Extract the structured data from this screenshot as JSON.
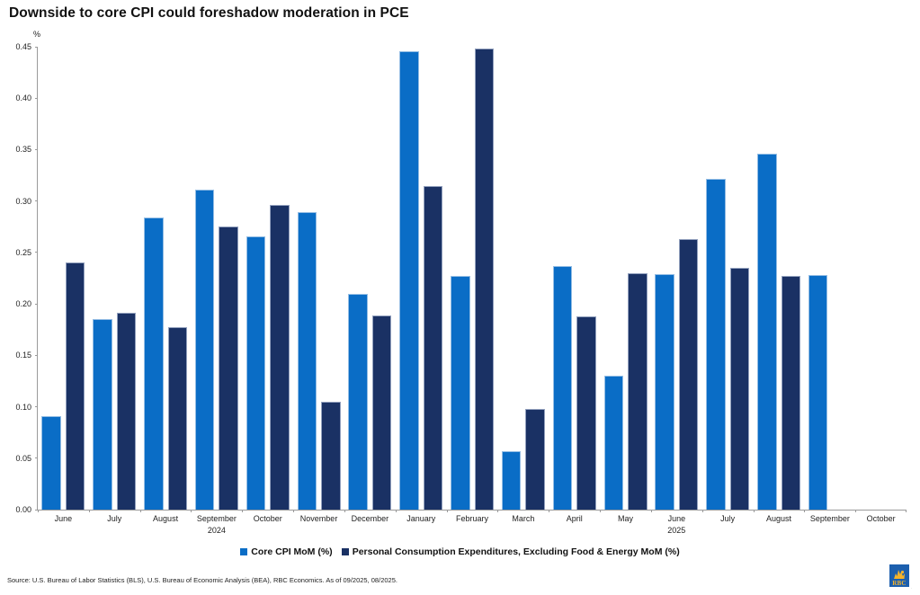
{
  "title": "Downside to core CPI could foreshadow moderation in PCE",
  "chart_data": {
    "type": "bar",
    "ylabel": "%",
    "ylim": [
      0,
      0.45
    ],
    "y_tick_step": 0.05,
    "y_ticks": [
      "0.00",
      "0.05",
      "0.10",
      "0.15",
      "0.20",
      "0.25",
      "0.30",
      "0.35",
      "0.40",
      "0.45"
    ],
    "grid": false,
    "legend_position": "bottom",
    "categories": [
      "June",
      "July",
      "August",
      "September",
      "October",
      "November",
      "December",
      "January",
      "February",
      "March",
      "April",
      "May",
      "June",
      "July",
      "August",
      "September",
      "October"
    ],
    "year_labels": [
      {
        "index": 3,
        "label": "2024"
      },
      {
        "index": 12,
        "label": "2025"
      }
    ],
    "series": [
      {
        "name": "Core CPI MoM (%)",
        "color": "#0a6dc6",
        "values": [
          0.091,
          0.185,
          0.284,
          0.311,
          0.266,
          0.289,
          0.21,
          0.446,
          0.227,
          0.057,
          0.237,
          0.13,
          0.229,
          0.322,
          0.346,
          0.228,
          null
        ]
      },
      {
        "name": "Personal Consumption Expenditures, Excluding Food & Energy MoM (%)",
        "color": "#1a3164",
        "values": [
          0.24,
          0.191,
          0.177,
          0.275,
          0.296,
          0.105,
          0.189,
          0.315,
          0.448,
          0.098,
          0.188,
          0.23,
          0.263,
          0.235,
          0.227,
          null,
          null
        ]
      }
    ]
  },
  "footer": {
    "source": "Source: U.S. Bureau of Labor Statistics (BLS), U.S. Bureau of Economic Analysis (BEA), RBC Economics. As of 09/2025, 08/2025.",
    "logo_text": "RBC"
  }
}
